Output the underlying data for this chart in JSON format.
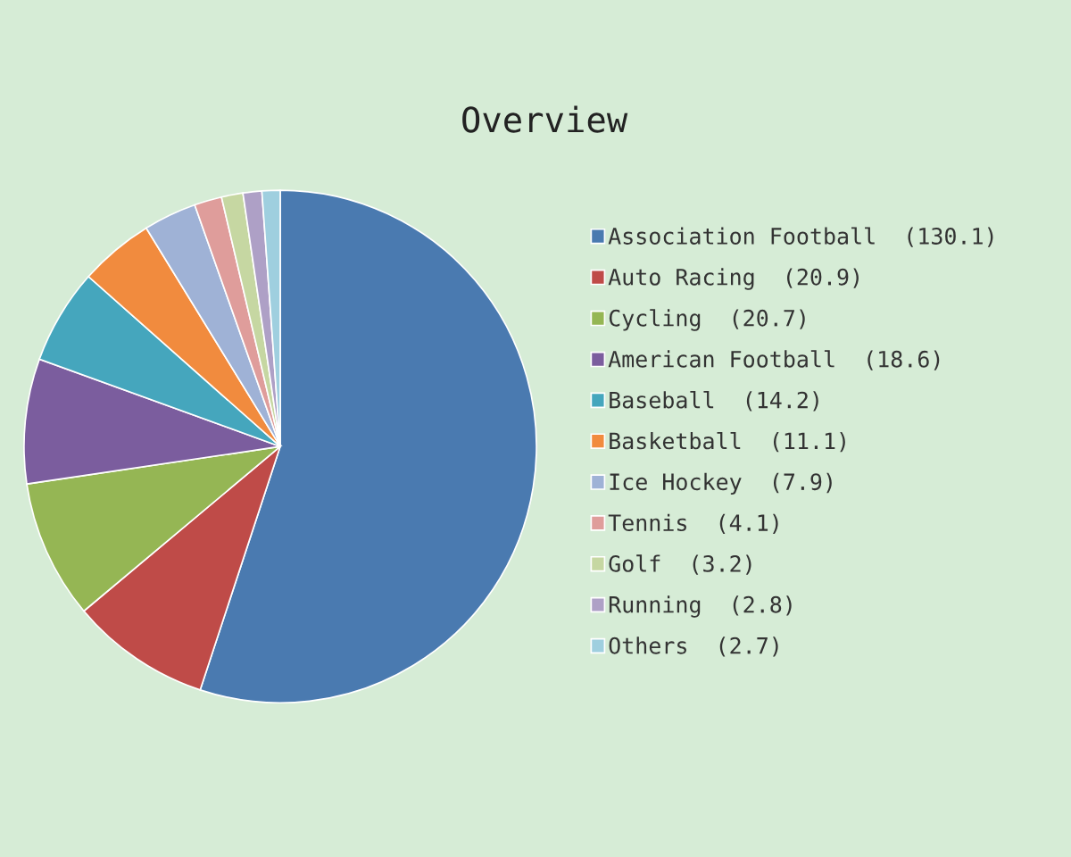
{
  "chart_data": {
    "type": "pie",
    "title": "Overview",
    "categories": [
      "Association Football  (130.1)",
      "Auto Racing  (20.9)",
      "Cycling  (20.7)",
      "American Football  (18.6)",
      "Baseball  (14.2)",
      "Basketball  (11.1)",
      "Ice Hockey  (7.9)",
      "Tennis  (4.1)",
      "Golf  (3.2)",
      "Running  (2.8)",
      "Others  (2.7)"
    ],
    "values": [
      130.1,
      20.9,
      20.7,
      18.6,
      14.2,
      11.1,
      7.9,
      4.1,
      3.2,
      2.8,
      2.7
    ],
    "colors": [
      "#4a7ab0",
      "#bf4b48",
      "#95b654",
      "#7b5d9e",
      "#45a6bd",
      "#f18b3e",
      "#9fb2d6",
      "#df9d9b",
      "#c6d7a2",
      "#aea0c6",
      "#9fcfdf"
    ],
    "legend": "right"
  }
}
